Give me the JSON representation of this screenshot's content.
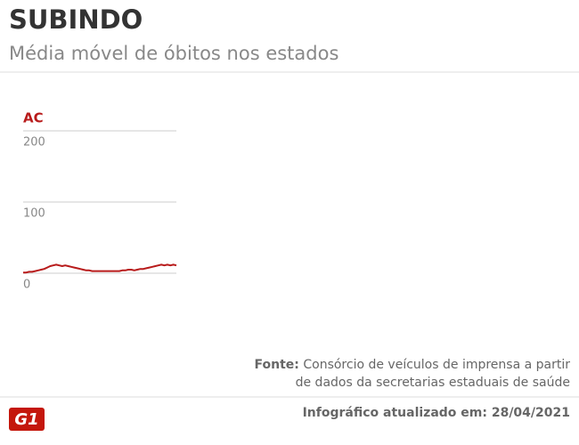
{
  "header": {
    "title": "SUBINDO",
    "subtitle": "Média móvel de óbitos nos estados"
  },
  "chart_data": {
    "type": "line",
    "title": "AC",
    "color": "#b81b1b",
    "grid": true,
    "ylim": [
      0,
      200
    ],
    "yticks": [
      0,
      100,
      200
    ],
    "values": [
      1,
      1,
      2,
      2,
      3,
      4,
      5,
      6,
      8,
      10,
      11,
      12,
      11,
      10,
      11,
      10,
      9,
      8,
      7,
      6,
      5,
      4,
      4,
      3,
      3,
      3,
      3,
      3,
      3,
      3,
      3,
      3,
      3,
      4,
      4,
      5,
      5,
      4,
      5,
      6,
      6,
      7,
      8,
      9,
      10,
      11,
      12,
      11,
      12,
      11,
      12,
      11
    ]
  },
  "footer": {
    "source_label": "Fonte:",
    "source_lines": [
      "Consórcio de veículos de imprensa a partir",
      "de dados da secretarias estaduais de saúde"
    ],
    "logo": "G1",
    "updated": "Infográfico atualizado em: 28/04/2021"
  }
}
